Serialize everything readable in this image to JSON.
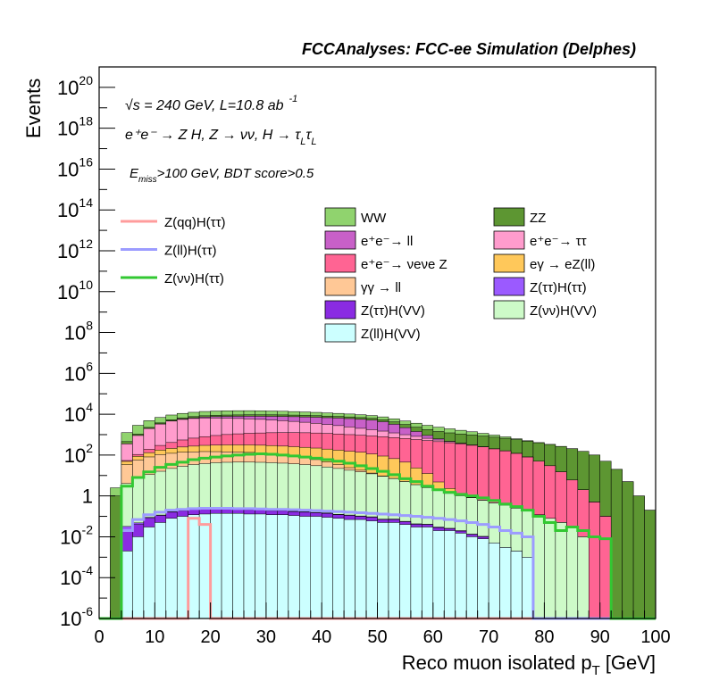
{
  "header": {
    "title": "FCCAnalyses: FCC-ee Simulation (Delphes)"
  },
  "annotations": {
    "sqrt": "√",
    "sqrt_s": "s = 240 GeV, L=10.8 ab",
    "lumi_exp": "-1",
    "process_main": "e⁺e⁻ → Z H, Z → νν, H → τ",
    "tau_sub1": "L",
    "tau": "τ",
    "tau_sub2": "L",
    "cut_E": "E",
    "cut_sub": "miss",
    "cut_rest": ">100 GeV, BDT score>0.5"
  },
  "chart_data": {
    "type": "bar",
    "title": "FCCAnalyses: FCC-ee Simulation (Delphes)",
    "xlabel_main": "Reco muon isolated p",
    "xlabel_sub": "T",
    "xlabel_unit": "[GeV]",
    "ylabel": "Events",
    "xlim": [
      0,
      100
    ],
    "ylim": [
      1e-06,
      1e+21
    ],
    "ylog": true,
    "bin_width": 2,
    "x_ticks": [
      "0",
      "10",
      "20",
      "30",
      "40",
      "50",
      "60",
      "70",
      "80",
      "90",
      "100"
    ],
    "y_ticks": [
      {
        "base": "10",
        "exp": "20",
        "v": 1e+20
      },
      {
        "base": "10",
        "exp": "18",
        "v": 1e+18
      },
      {
        "base": "10",
        "exp": "16",
        "v": 1e+16
      },
      {
        "base": "10",
        "exp": "14",
        "v": 100000000000000.0
      },
      {
        "base": "10",
        "exp": "12",
        "v": 1000000000000.0
      },
      {
        "base": "10",
        "exp": "10",
        "v": 10000000000.0
      },
      {
        "base": "10",
        "exp": "8",
        "v": 100000000.0
      },
      {
        "base": "10",
        "exp": "6",
        "v": 1000000.0
      },
      {
        "base": "10",
        "exp": "4",
        "v": 10000.0
      },
      {
        "base": "10",
        "exp": "2",
        "v": 100.0
      },
      {
        "base": "1",
        "exp": "",
        "v": 1
      },
      {
        "base": "10",
        "exp": "-2",
        "v": 0.01
      },
      {
        "base": "10",
        "exp": "-4",
        "v": 0.0001
      },
      {
        "base": "10",
        "exp": "-6",
        "v": 1e-06
      }
    ],
    "stack_order": [
      "Z(ll)H(VV)",
      "Z(ττ)H(VV)",
      "Z(ττ)H(ττ)",
      "Z(νν)H(VV)",
      "γγ → ll",
      "eγ → eZ(ll)",
      "e+e- → νeνe Z",
      "e+e- → ττ",
      "e+e- → ll",
      "ZZ",
      "WW"
    ],
    "stack_series": [
      {
        "name": "WW",
        "color": "#90d36e",
        "values": [
          0,
          1.5,
          800,
          1800,
          2600,
          3200,
          3800,
          4300,
          4800,
          5200,
          5500,
          5600,
          5600,
          5500,
          5300,
          5000,
          4700,
          4400,
          4100,
          3800,
          3500,
          3200,
          2900,
          2600,
          2300,
          2000,
          1750,
          1500,
          1300,
          1100,
          900,
          700,
          550,
          420,
          300,
          200,
          120,
          60,
          25,
          8,
          2,
          0.3,
          0.05,
          0.01,
          0.003,
          0,
          0,
          0,
          0,
          0
        ]
      },
      {
        "name": "ZZ",
        "color": "#5d9632",
        "values": [
          0,
          1,
          100,
          150,
          250,
          400,
          600,
          800,
          950,
          1100,
          1200,
          1300,
          1350,
          1400,
          1450,
          1500,
          1500,
          1500,
          1450,
          1400,
          1350,
          1300,
          1250,
          1200,
          1150,
          1100,
          1000,
          950,
          900,
          850,
          800,
          750,
          700,
          650,
          600,
          550,
          500,
          450,
          400,
          350,
          300,
          250,
          200,
          150,
          100,
          50,
          20,
          5,
          1,
          0.2
        ]
      },
      {
        "name": "e+e- → ll",
        "color": "#c860c8",
        "values": [
          0,
          0,
          2,
          5,
          20,
          60,
          150,
          300,
          500,
          800,
          1100,
          1400,
          1700,
          2000,
          2300,
          2600,
          2900,
          3100,
          3300,
          3500,
          3600,
          3700,
          3700,
          3600,
          3400,
          2800,
          2000,
          1200,
          600,
          250,
          80,
          20,
          5,
          1,
          0.2,
          0.05,
          0,
          0,
          0,
          0,
          0,
          0,
          0,
          0,
          0,
          0,
          0,
          0,
          0,
          0
        ]
      },
      {
        "name": "e+e- → ττ",
        "color": "#ff9ccd",
        "values": [
          0,
          0,
          300,
          800,
          1800,
          3000,
          4200,
          5000,
          5500,
          5700,
          5600,
          5400,
          5100,
          4800,
          4400,
          4000,
          3600,
          3200,
          2800,
          2400,
          2000,
          1700,
          1400,
          1100,
          900,
          700,
          500,
          350,
          250,
          150,
          90,
          50,
          25,
          10,
          4,
          1,
          0.2,
          0.05,
          0,
          0,
          0,
          0,
          0,
          0,
          0,
          0,
          0,
          0,
          0,
          0
        ]
      },
      {
        "name": "e+e- → νeνe Z",
        "color": "#ff6493",
        "values": [
          0,
          0,
          5,
          20,
          60,
          120,
          200,
          300,
          400,
          500,
          600,
          700,
          780,
          850,
          900,
          950,
          980,
          1000,
          1000,
          980,
          950,
          900,
          850,
          800,
          750,
          700,
          650,
          600,
          550,
          500,
          450,
          400,
          350,
          300,
          250,
          200,
          160,
          120,
          80,
          50,
          30,
          15,
          6,
          2,
          0.5,
          0.1,
          0,
          0,
          0,
          0
        ]
      },
      {
        "name": "eγ → eZ(ll)",
        "color": "#ffc85a",
        "values": [
          0,
          0,
          15,
          30,
          50,
          70,
          90,
          110,
          130,
          150,
          160,
          170,
          175,
          180,
          180,
          180,
          175,
          170,
          165,
          160,
          150,
          140,
          130,
          120,
          100,
          80,
          60,
          40,
          20,
          10,
          3,
          1,
          0.2,
          0.05,
          0,
          0,
          0,
          0,
          0,
          0,
          0,
          0,
          0,
          0,
          0,
          0,
          0,
          0,
          0,
          0
        ]
      },
      {
        "name": "γγ → ll",
        "color": "#ffc896",
        "values": [
          0,
          0,
          30,
          50,
          70,
          90,
          100,
          110,
          110,
          110,
          105,
          100,
          95,
          90,
          80,
          70,
          60,
          50,
          40,
          30,
          20,
          12,
          6,
          3,
          1,
          0.3,
          0.1,
          0,
          0,
          0,
          0,
          0,
          0,
          0,
          0,
          0,
          0,
          0,
          0,
          0,
          0,
          0,
          0,
          0,
          0,
          0,
          0,
          0,
          0,
          0
        ]
      },
      {
        "name": "Z(νν)H(VV)",
        "color": "#cdfac8",
        "values": [
          0,
          0,
          4,
          7,
          11,
          16,
          22,
          28,
          34,
          38,
          42,
          44,
          45,
          45,
          44,
          42,
          40,
          37,
          34,
          30,
          26,
          22,
          18,
          15,
          12,
          9,
          7,
          5,
          3.5,
          2.5,
          1.8,
          1.3,
          1,
          0.8,
          0.6,
          0.45,
          0.35,
          0.25,
          0.18,
          0.12,
          0.08,
          0.05,
          0.03,
          0.01,
          0,
          0,
          0,
          0,
          0,
          0
        ]
      },
      {
        "name": "Z(ττ)H(ττ)",
        "color": "#9b5aff",
        "values": [
          0,
          0,
          0.01,
          0.008,
          0.01,
          0.006,
          0.01,
          0.012,
          0.01,
          0.015,
          0.012,
          0.01,
          0.014,
          0.012,
          0.01,
          0.008,
          0.01,
          0.008,
          0.01,
          0.006,
          0.008,
          0.005,
          0.006,
          0.004,
          0.005,
          0.003,
          0.004,
          0.002,
          0.003,
          0.001,
          0.002,
          0.001,
          0.001,
          0.0005,
          0.0005,
          0,
          0,
          0,
          0,
          0,
          0,
          0,
          0,
          0,
          0,
          0,
          0,
          0,
          0,
          0
        ]
      },
      {
        "name": "Z(ττ)H(VV)",
        "color": "#8a2be2",
        "values": [
          0,
          0,
          0.02,
          0.03,
          0.05,
          0.06,
          0.08,
          0.09,
          0.1,
          0.1,
          0.1,
          0.09,
          0.09,
          0.08,
          0.08,
          0.07,
          0.07,
          0.06,
          0.06,
          0.05,
          0.05,
          0.04,
          0.04,
          0.03,
          0.03,
          0.02,
          0.02,
          0.015,
          0.01,
          0.01,
          0.008,
          0.005,
          0.004,
          0.003,
          0.002,
          0,
          0,
          0,
          0,
          0,
          0,
          0,
          0,
          0,
          0,
          0,
          0,
          0,
          0,
          0
        ]
      },
      {
        "name": "Z(ll)H(VV)",
        "color": "#ccffff",
        "values": [
          0,
          0,
          0.002,
          0.01,
          0.03,
          0.05,
          0.08,
          0.1,
          0.12,
          0.13,
          0.14,
          0.14,
          0.14,
          0.13,
          0.13,
          0.12,
          0.12,
          0.11,
          0.1,
          0.1,
          0.09,
          0.08,
          0.07,
          0.07,
          0.06,
          0.05,
          0.05,
          0.04,
          0.03,
          0.03,
          0.02,
          0.02,
          0.015,
          0.01,
          0.008,
          0.005,
          0.003,
          0.002,
          0.001,
          0,
          0,
          0,
          0,
          0,
          0,
          0,
          0,
          0,
          0,
          0
        ]
      }
    ],
    "line_series": [
      {
        "name": "Z(qq)H(ττ)",
        "color": "#ff9c9c",
        "values": [
          0,
          0,
          0,
          0,
          0,
          0,
          0,
          0,
          0.08,
          0.04,
          0,
          0,
          0,
          0,
          0,
          0,
          0,
          0,
          0,
          0,
          0,
          0,
          0,
          0,
          0,
          0,
          0,
          0,
          0,
          0,
          0,
          0,
          0,
          0,
          0,
          0,
          0,
          0,
          0,
          0,
          0,
          0,
          0,
          0,
          0,
          0,
          0,
          0,
          0,
          0
        ]
      },
      {
        "name": "Z(ll)H(ττ)",
        "color": "#9c9cff",
        "values": [
          0,
          0,
          0.02,
          0.07,
          0.12,
          0.16,
          0.2,
          0.22,
          0.24,
          0.25,
          0.25,
          0.25,
          0.24,
          0.24,
          0.23,
          0.22,
          0.22,
          0.21,
          0.2,
          0.19,
          0.18,
          0.17,
          0.16,
          0.15,
          0.14,
          0.13,
          0.12,
          0.11,
          0.1,
          0.09,
          0.08,
          0.07,
          0.06,
          0.05,
          0.04,
          0.03,
          0.02,
          0.015,
          0.01,
          0,
          0,
          0,
          0,
          0,
          0,
          0,
          0,
          0,
          0,
          0
        ]
      },
      {
        "name": "Z(νν)H(ττ)",
        "color": "#32c832",
        "values": [
          0,
          1e-06,
          3,
          8,
          15,
          25,
          35,
          45,
          60,
          70,
          80,
          90,
          100,
          110,
          115,
          110,
          100,
          90,
          80,
          70,
          60,
          50,
          40,
          30,
          22,
          16,
          11,
          7,
          5,
          3,
          2,
          1.5,
          1.2,
          1,
          0.8,
          0.6,
          0.4,
          0.3,
          0.2,
          0.1,
          0.05,
          0.02,
          0.03,
          0.02,
          0.01,
          0.008,
          0,
          0,
          0,
          0
        ]
      }
    ],
    "legend": {
      "left": [
        "Z(qq)H(ττ)",
        "Z(ll)H(ττ)",
        "Z(νν)H(ττ)"
      ],
      "middle": [
        "WW",
        "e⁺e⁻→ ll",
        "e⁺e⁻→ νeνe Z",
        "γγ → ll",
        "Z(ττ)H(VV)",
        "Z(ll)H(VV)"
      ],
      "right": [
        "ZZ",
        "e⁺e⁻→ ττ",
        "eγ → eZ(ll)",
        "Z(ττ)H(ττ)",
        "Z(νν)H(VV)"
      ]
    },
    "legend_colors": {
      "Z(qq)H(ττ)": "#ff9c9c",
      "Z(ll)H(ττ)": "#9c9cff",
      "Z(νν)H(ττ)": "#32c832",
      "WW": "#90d36e",
      "e⁺e⁻→ ll": "#c860c8",
      "e⁺e⁻→ νeνe Z": "#ff6493",
      "γγ → ll": "#ffc896",
      "Z(ττ)H(VV)": "#8a2be2",
      "Z(ll)H(VV)": "#ccffff",
      "ZZ": "#5d9632",
      "e⁺e⁻→ ττ": "#ff9ccd",
      "eγ → eZ(ll)": "#ffc85a",
      "Z(ττ)H(ττ)": "#9b5aff",
      "Z(νν)H(VV)": "#cdfac8"
    }
  }
}
